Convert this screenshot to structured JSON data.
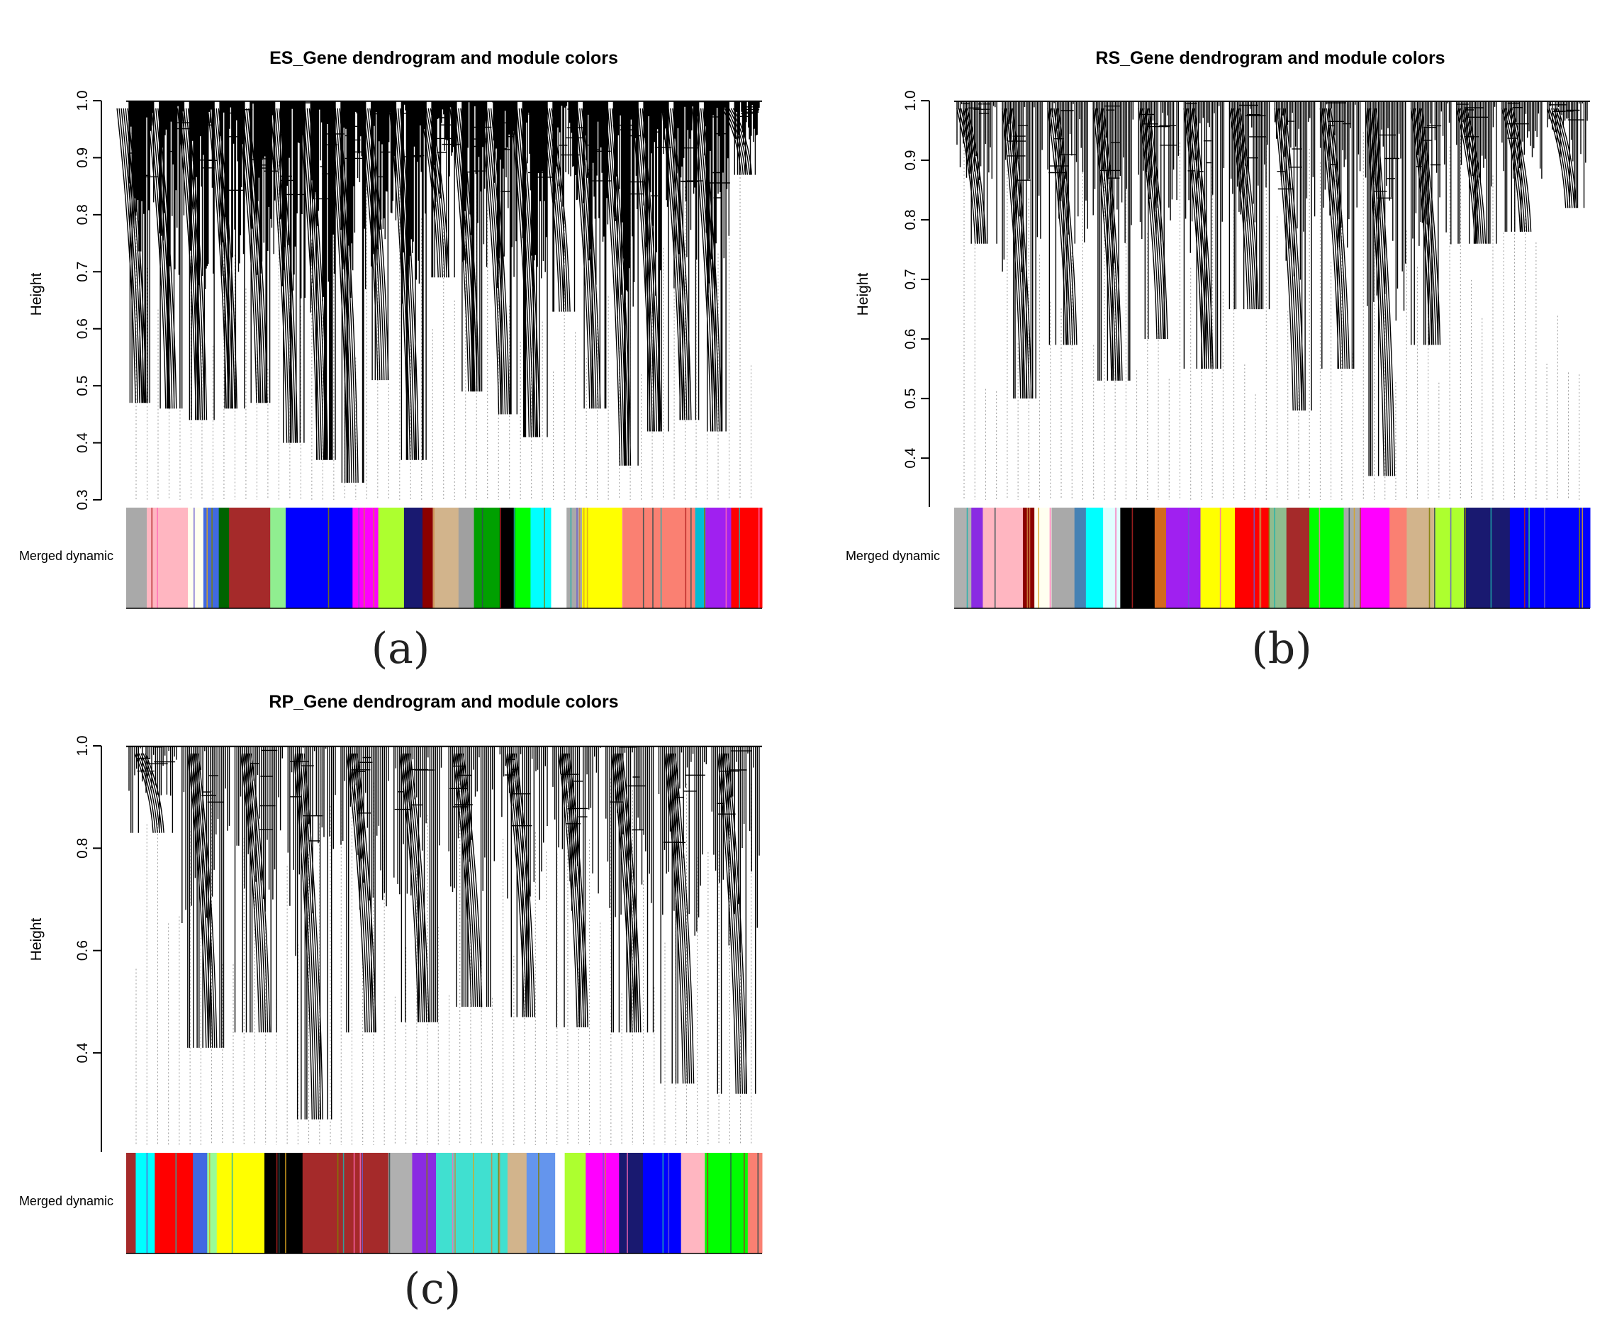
{
  "chart_data": [
    {
      "type": "dendrogram",
      "title": "ES_Gene dendrogram and module colors",
      "ylabel": "Height",
      "ylim": [
        0.3,
        1.0
      ],
      "yticks": [
        "0.3",
        "0.4",
        "0.5",
        "0.6",
        "0.7",
        "0.8",
        "0.9",
        "1.0"
      ],
      "row_label": "Merged dynamic",
      "caption": "(a)",
      "leaf_minima": [
        0.47,
        0.46,
        0.44,
        0.46,
        0.47,
        0.4,
        0.37,
        0.33,
        0.51,
        0.37,
        0.69,
        0.49,
        0.45,
        0.41,
        0.63,
        0.46,
        0.36,
        0.42,
        0.44,
        0.42,
        0.87
      ],
      "module_colors": [
        "#a9a9a9",
        "#ffb6c1",
        "#fffff0",
        "#4169e1",
        "#006400",
        "#a52a2a",
        "#90ee90",
        "#0000ff",
        "#ff00ff",
        "#adff2f",
        "#191970",
        "#8b0000",
        "#d2b48c",
        "#a0a0a0",
        "#00a000",
        "#000000",
        "#00ff00",
        "#00ffff",
        "#ffffff",
        "#a9a9a9",
        "#ffff00",
        "#fa8072",
        "#00bcd4",
        "#a020f0",
        "#ff0000"
      ],
      "module_widths": [
        2,
        4,
        1.5,
        1.5,
        1,
        4,
        1.5,
        6.5,
        2.5,
        2.5,
        1.8,
        1,
        2.5,
        1.5,
        2.5,
        1.5,
        1.5,
        2,
        1.5,
        1.5,
        4,
        7,
        1,
        2.5,
        3
      ]
    },
    {
      "type": "dendrogram",
      "title": "RS_Gene dendrogram and module colors",
      "ylabel": "Height",
      "ylim": [
        0.33,
        1.0
      ],
      "yticks": [
        "0.4",
        "0.5",
        "0.6",
        "0.7",
        "0.8",
        "0.9",
        "1.0"
      ],
      "row_label": "Merged dynamic",
      "caption": "(b)",
      "leaf_minima": [
        0.76,
        0.5,
        0.59,
        0.53,
        0.6,
        0.55,
        0.65,
        0.48,
        0.55,
        0.37,
        0.59,
        0.76,
        0.78,
        0.82
      ],
      "module_colors": [
        "#b0b0b0",
        "#8a2be2",
        "#ffb6c1",
        "#8b0000",
        "#fffff0",
        "#a9a9a9",
        "#4682b4",
        "#00ffff",
        "#e0ffff",
        "#000000",
        "#d2691e",
        "#a020f0",
        "#ffff00",
        "#ff0000",
        "#8fbc8f",
        "#a52a2a",
        "#00ff00",
        "#a9a9a9",
        "#ff00ff",
        "#fa8072",
        "#d2b48c",
        "#adff2f",
        "#191970",
        "#0000ff"
      ],
      "module_widths": [
        1.5,
        1,
        3.5,
        1,
        1.5,
        2,
        1,
        1.5,
        1.5,
        3,
        1,
        3,
        3,
        3,
        1.5,
        2,
        3,
        1.5,
        2.5,
        1.5,
        2.5,
        2.5,
        4,
        7
      ]
    },
    {
      "type": "dendrogram",
      "title": "RP_Gene dendrogram and module colors",
      "ylabel": "Height",
      "ylim": [
        0.22,
        1.0
      ],
      "yticks": [
        "0.4",
        "0.6",
        "0.8",
        "1.0"
      ],
      "row_label": "Merged dynamic",
      "caption": "(c)",
      "leaf_minima": [
        0.83,
        0.41,
        0.44,
        0.27,
        0.44,
        0.46,
        0.49,
        0.47,
        0.45,
        0.44,
        0.34,
        0.32
      ],
      "module_colors": [
        "#a52a2a",
        "#00ffff",
        "#ff0000",
        "#4169e1",
        "#98fb98",
        "#ffff00",
        "#000000",
        "#a52a2a",
        "#b0b0b0",
        "#8a2be2",
        "#40e0d0",
        "#d2b48c",
        "#6495ed",
        "#ffffff",
        "#adff2f",
        "#ff00ff",
        "#191970",
        "#0000ff",
        "#ffb6c1",
        "#00ff00",
        "#fa8072"
      ],
      "module_widths": [
        1,
        2,
        4,
        1.5,
        1,
        5,
        4,
        9,
        2.5,
        2.5,
        7.5,
        2,
        3,
        1,
        2.2,
        3.5,
        2.5,
        4,
        2.5,
        4.5,
        1.5
      ]
    }
  ]
}
